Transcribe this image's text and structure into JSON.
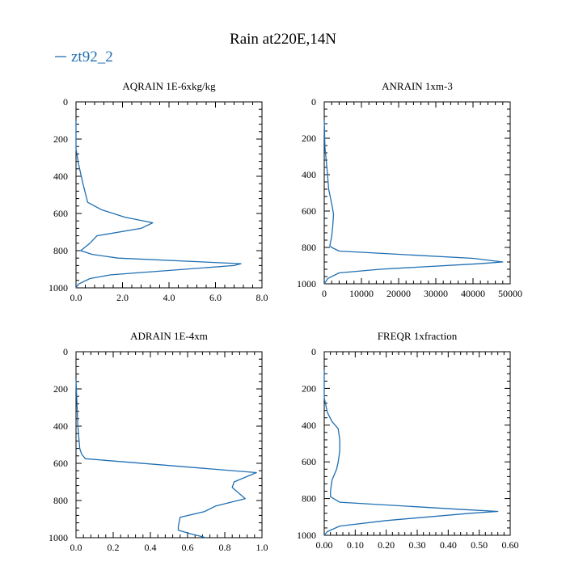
{
  "figure": {
    "title": "Rain at220E,14N",
    "legend_label": "zt92_2",
    "series_color": "#1f6fb2"
  },
  "chart_data": [
    {
      "type": "line",
      "title": "AQRAIN  1E-6xkg/kg",
      "xlabel": "",
      "ylabel": "",
      "xlim": [
        0,
        8
      ],
      "ylim": [
        1000,
        0
      ],
      "x_ticks": [
        0,
        2,
        4,
        6,
        8
      ],
      "x_tick_labels": [
        "0.0",
        "2.0",
        "4.0",
        "6.0",
        "8.0"
      ],
      "y_ticks": [
        0,
        200,
        400,
        600,
        800,
        1000
      ],
      "y_tick_labels": [
        "0",
        "200",
        "400",
        "600",
        "800",
        "1000"
      ],
      "series": [
        {
          "name": "zt92_2",
          "x": [
            0.0,
            0.0,
            0.1,
            0.3,
            0.5,
            1.1,
            2.1,
            3.3,
            2.8,
            0.9,
            0.6,
            0.3,
            0.2,
            0.7,
            1.8,
            7.1,
            6.8,
            1.5,
            0.6,
            0.1,
            0.0
          ],
          "y": [
            100,
            250,
            330,
            440,
            540,
            580,
            620,
            650,
            680,
            720,
            760,
            790,
            800,
            820,
            840,
            870,
            880,
            930,
            950,
            980,
            1000
          ]
        }
      ]
    },
    {
      "type": "line",
      "title": "ANRAIN  1xm-3",
      "xlabel": "",
      "ylabel": "",
      "xlim": [
        0,
        50000
      ],
      "ylim": [
        1000,
        0
      ],
      "x_ticks": [
        0,
        10000,
        20000,
        30000,
        40000,
        50000
      ],
      "x_tick_labels": [
        "0",
        "10000",
        "20000",
        "30000",
        "40000",
        "50000"
      ],
      "y_ticks": [
        0,
        200,
        400,
        600,
        800,
        1000
      ],
      "y_tick_labels": [
        "0",
        "200",
        "400",
        "600",
        "800",
        "1000"
      ],
      "series": [
        {
          "name": "zt92_2",
          "x": [
            0,
            200,
            800,
            1200,
            1800,
            2200,
            2500,
            2300,
            2000,
            1500,
            2000,
            4000,
            40000,
            48000,
            41000,
            15000,
            4000,
            1000,
            0
          ],
          "y": [
            100,
            250,
            380,
            480,
            540,
            580,
            620,
            680,
            740,
            790,
            800,
            820,
            860,
            880,
            890,
            920,
            940,
            970,
            1000
          ]
        }
      ]
    },
    {
      "type": "line",
      "title": "ADRAIN  1E-4xm",
      "xlabel": "",
      "ylabel": "",
      "xlim": [
        0,
        1
      ],
      "ylim": [
        1000,
        0
      ],
      "x_ticks": [
        0,
        0.2,
        0.4,
        0.6,
        0.8,
        1.0
      ],
      "x_tick_labels": [
        "0.0",
        "0.2",
        "0.4",
        "0.6",
        "0.8",
        "1.0"
      ],
      "y_ticks": [
        0,
        200,
        400,
        600,
        800,
        1000
      ],
      "y_tick_labels": [
        "0",
        "200",
        "400",
        "600",
        "800",
        "1000"
      ],
      "series": [
        {
          "name": "zt92_2",
          "x": [
            0.0,
            0.01,
            0.02,
            0.03,
            0.05,
            0.97,
            0.85,
            0.84,
            0.91,
            0.75,
            0.69,
            0.56,
            0.55,
            0.55,
            0.62,
            0.7
          ],
          "y": [
            150,
            400,
            520,
            550,
            575,
            650,
            700,
            730,
            790,
            830,
            860,
            890,
            940,
            960,
            980,
            1000
          ]
        }
      ]
    },
    {
      "type": "line",
      "title": "FREQR  1xfraction",
      "xlabel": "",
      "ylabel": "",
      "xlim": [
        0,
        0.6
      ],
      "ylim": [
        1000,
        0
      ],
      "x_ticks": [
        0,
        0.1,
        0.2,
        0.3,
        0.4,
        0.5,
        0.6
      ],
      "x_tick_labels": [
        "0.00",
        "0.10",
        "0.20",
        "0.30",
        "0.40",
        "0.50",
        "0.60"
      ],
      "y_ticks": [
        0,
        200,
        400,
        600,
        800,
        1000
      ],
      "y_tick_labels": [
        "0",
        "200",
        "400",
        "600",
        "800",
        "1000"
      ],
      "series": [
        {
          "name": "zt92_2",
          "x": [
            0.0,
            0.0,
            0.01,
            0.025,
            0.045,
            0.05,
            0.05,
            0.045,
            0.04,
            0.025,
            0.02,
            0.02,
            0.03,
            0.05,
            0.45,
            0.56,
            0.47,
            0.2,
            0.05,
            0.01,
            0.0
          ],
          "y": [
            100,
            250,
            330,
            380,
            420,
            480,
            540,
            600,
            640,
            700,
            760,
            790,
            800,
            820,
            860,
            870,
            880,
            920,
            950,
            980,
            1000
          ]
        }
      ]
    }
  ]
}
